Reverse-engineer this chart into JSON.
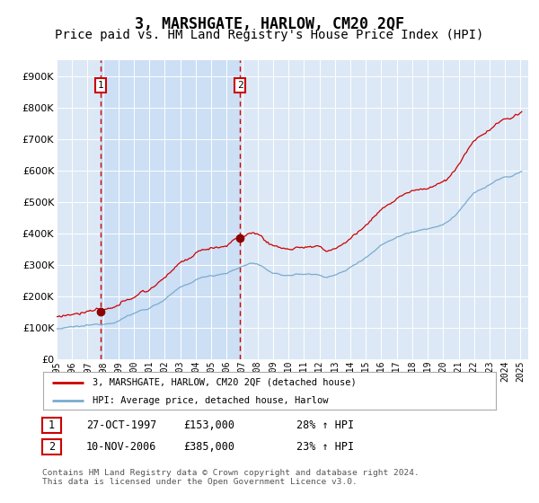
{
  "title": "3, MARSHGATE, HARLOW, CM20 2QF",
  "subtitle": "Price paid vs. HM Land Registry's House Price Index (HPI)",
  "title_fontsize": 12,
  "subtitle_fontsize": 10,
  "background_color": "#ffffff",
  "plot_bg_color": "#dce8f5",
  "grid_color": "#ffffff",
  "sale1_date": 1997.83,
  "sale1_price": 153000,
  "sale2_date": 2006.87,
  "sale2_price": 385000,
  "sale1_label": "1",
  "sale2_label": "2",
  "dashed_line_color": "#cc0000",
  "shade_color": "#ccdff5",
  "ylim_min": 0,
  "ylim_max": 950000,
  "ytick_step": 100000,
  "legend_line1": "3, MARSHGATE, HARLOW, CM20 2QF (detached house)",
  "legend_line2": "HPI: Average price, detached house, Harlow",
  "table_row1": [
    "1",
    "27-OCT-1997",
    "£153,000",
    "28% ↑ HPI"
  ],
  "table_row2": [
    "2",
    "10-NOV-2006",
    "£385,000",
    "23% ↑ HPI"
  ],
  "footnote": "Contains HM Land Registry data © Crown copyright and database right 2024.\nThis data is licensed under the Open Government Licence v3.0.",
  "red_line_color": "#cc0000",
  "blue_line_color": "#7aabcf",
  "hpi_anchors_t": [
    1995.0,
    1995.5,
    1996.0,
    1996.5,
    1997.0,
    1997.5,
    1998.0,
    1998.5,
    1999.0,
    1999.5,
    2000.0,
    2000.5,
    2001.0,
    2001.5,
    2002.0,
    2002.5,
    2003.0,
    2003.5,
    2004.0,
    2004.5,
    2005.0,
    2005.5,
    2006.0,
    2006.5,
    2007.0,
    2007.5,
    2008.0,
    2008.5,
    2009.0,
    2009.5,
    2010.0,
    2010.5,
    2011.0,
    2011.5,
    2012.0,
    2012.5,
    2013.0,
    2013.5,
    2014.0,
    2014.5,
    2015.0,
    2015.5,
    2016.0,
    2016.5,
    2017.0,
    2017.5,
    2018.0,
    2018.5,
    2019.0,
    2019.5,
    2020.0,
    2020.5,
    2021.0,
    2021.5,
    2022.0,
    2022.5,
    2023.0,
    2023.5,
    2024.0,
    2024.5,
    2025.0
  ],
  "hpi_anchors_v": [
    98000,
    99000,
    101000,
    103000,
    106000,
    109000,
    114000,
    120000,
    128000,
    138000,
    148000,
    157000,
    166000,
    178000,
    192000,
    210000,
    225000,
    238000,
    252000,
    261000,
    268000,
    272000,
    278000,
    285000,
    295000,
    305000,
    305000,
    290000,
    272000,
    265000,
    268000,
    270000,
    272000,
    271000,
    268000,
    265000,
    268000,
    278000,
    292000,
    310000,
    328000,
    345000,
    365000,
    380000,
    390000,
    400000,
    408000,
    415000,
    420000,
    425000,
    428000,
    445000,
    470000,
    500000,
    525000,
    540000,
    555000,
    570000,
    578000,
    582000,
    595000
  ],
  "prop_scale": 1.28
}
